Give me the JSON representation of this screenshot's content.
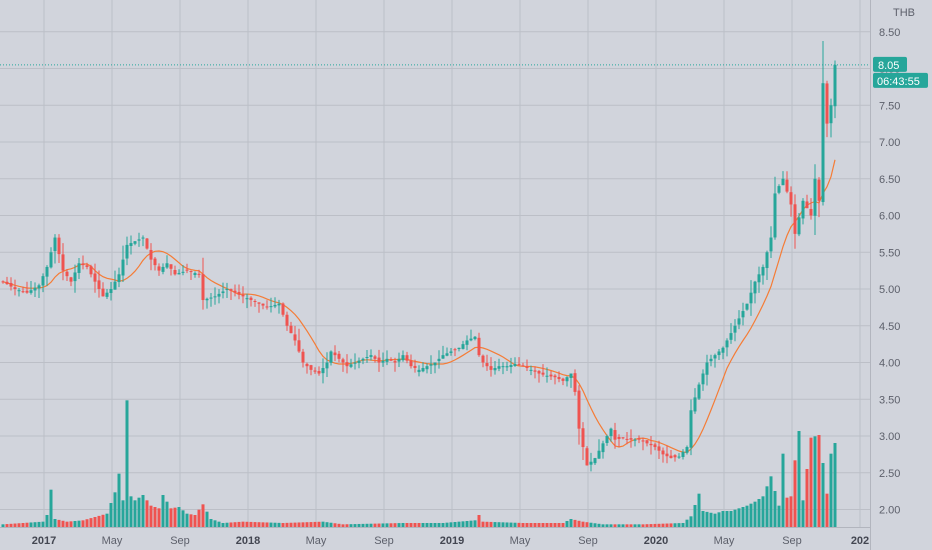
{
  "chart_data": {
    "type": "candlestick",
    "currency": "THB",
    "ylim": [
      1.75,
      8.75
    ],
    "y_ticks": [
      "8.50",
      "8.00",
      "7.50",
      "7.00",
      "6.50",
      "6.00",
      "5.50",
      "5.00",
      "4.50",
      "4.00",
      "3.50",
      "3.00",
      "2.50",
      "2.00"
    ],
    "x_ticks": [
      {
        "label": "2017",
        "week": 2,
        "year": true
      },
      {
        "label": "May",
        "week": 19,
        "year": false
      },
      {
        "label": "Sep",
        "week": 36,
        "year": false
      },
      {
        "label": "2018",
        "week": 53,
        "year": true
      },
      {
        "label": "May",
        "week": 70,
        "year": false
      },
      {
        "label": "Sep",
        "week": 87,
        "year": false
      },
      {
        "label": "2019",
        "week": 104,
        "year": true
      },
      {
        "label": "May",
        "week": 121,
        "year": false
      },
      {
        "label": "Sep",
        "week": 138,
        "year": false
      },
      {
        "label": "2020",
        "week": 155,
        "year": true
      },
      {
        "label": "May",
        "week": 172,
        "year": false
      },
      {
        "label": "Sep",
        "week": 189,
        "year": false
      },
      {
        "label": "202",
        "week": 206,
        "year": true
      }
    ],
    "last_price": "8.05",
    "last_value": 8.05,
    "countdown": "06:43:55",
    "colors": {
      "up": "#26a69a",
      "down": "#ef5350",
      "ma": "#f57c36",
      "grid": "#bcbfc7",
      "text": "#5d606b",
      "last": "#26a69a"
    },
    "close_anchors": [
      [
        0,
        5.1
      ],
      [
        3,
        5.0
      ],
      [
        6,
        4.95
      ],
      [
        9,
        5.05
      ],
      [
        11,
        5.3
      ],
      [
        13,
        5.7
      ],
      [
        15,
        5.25
      ],
      [
        17,
        5.1
      ],
      [
        19,
        5.35
      ],
      [
        21,
        5.3
      ],
      [
        23,
        5.1
      ],
      [
        25,
        4.9
      ],
      [
        27,
        5.0
      ],
      [
        29,
        5.2
      ],
      [
        31,
        5.6
      ],
      [
        33,
        5.65
      ],
      [
        35,
        5.7
      ],
      [
        37,
        5.4
      ],
      [
        39,
        5.25
      ],
      [
        41,
        5.35
      ],
      [
        43,
        5.2
      ],
      [
        46,
        5.25
      ],
      [
        49,
        5.2
      ],
      [
        50,
        4.85
      ],
      [
        53,
        4.9
      ],
      [
        56,
        5.0
      ],
      [
        58,
        4.95
      ],
      [
        60,
        4.9
      ],
      [
        62,
        4.85
      ],
      [
        64,
        4.8
      ],
      [
        66,
        4.75
      ],
      [
        69,
        4.8
      ],
      [
        71,
        4.5
      ],
      [
        73,
        4.3
      ],
      [
        75,
        4.0
      ],
      [
        77,
        3.9
      ],
      [
        79,
        3.85
      ],
      [
        81,
        4.0
      ],
      [
        82,
        4.15
      ],
      [
        84,
        4.05
      ],
      [
        86,
        3.95
      ],
      [
        88,
        4.0
      ],
      [
        90,
        4.05
      ],
      [
        92,
        4.1
      ],
      [
        94,
        4.0
      ],
      [
        96,
        4.05
      ],
      [
        98,
        4.0
      ],
      [
        100,
        4.1
      ],
      [
        102,
        3.95
      ],
      [
        104,
        3.9
      ],
      [
        106,
        3.95
      ],
      [
        108,
        4.0
      ],
      [
        110,
        4.1
      ],
      [
        112,
        4.15
      ],
      [
        114,
        4.2
      ],
      [
        116,
        4.3
      ],
      [
        118,
        4.35
      ],
      [
        119,
        4.1
      ],
      [
        120,
        4.0
      ],
      [
        122,
        3.9
      ],
      [
        124,
        3.95
      ],
      [
        126,
        3.95
      ],
      [
        128,
        3.98
      ],
      [
        130,
        3.95
      ],
      [
        132,
        3.9
      ],
      [
        134,
        3.85
      ],
      [
        136,
        3.82
      ],
      [
        138,
        3.8
      ],
      [
        140,
        3.75
      ],
      [
        142,
        3.85
      ],
      [
        143,
        3.6
      ],
      [
        144,
        3.1
      ],
      [
        145,
        2.85
      ],
      [
        146,
        2.6
      ],
      [
        148,
        2.7
      ],
      [
        150,
        2.9
      ],
      [
        152,
        3.1
      ],
      [
        153,
        2.95
      ],
      [
        155,
        2.97
      ],
      [
        157,
        2.95
      ],
      [
        159,
        2.95
      ],
      [
        161,
        2.9
      ],
      [
        163,
        2.85
      ],
      [
        165,
        2.75
      ],
      [
        167,
        2.7
      ],
      [
        169,
        2.72
      ],
      [
        171,
        2.85
      ],
      [
        172,
        3.35
      ],
      [
        174,
        3.7
      ],
      [
        176,
        4.0
      ],
      [
        178,
        4.1
      ],
      [
        180,
        4.2
      ],
      [
        182,
        4.4
      ],
      [
        184,
        4.6
      ],
      [
        186,
        4.8
      ],
      [
        188,
        5.1
      ],
      [
        190,
        5.3
      ],
      [
        192,
        5.7
      ],
      [
        193,
        6.3
      ],
      [
        195,
        6.5
      ],
      [
        197,
        6.15
      ],
      [
        198,
        5.75
      ],
      [
        200,
        6.2
      ],
      [
        202,
        6.0
      ],
      [
        203,
        6.5
      ],
      [
        204,
        6.2
      ],
      [
        205,
        7.8
      ],
      [
        206,
        7.25
      ],
      [
        207,
        7.5
      ],
      [
        208,
        8.05
      ]
    ],
    "volume_anchors": [
      [
        0,
        0.2
      ],
      [
        10,
        0.4
      ],
      [
        11,
        0.9
      ],
      [
        12,
        2.8
      ],
      [
        13,
        0.6
      ],
      [
        16,
        0.4
      ],
      [
        20,
        0.5
      ],
      [
        26,
        1.0
      ],
      [
        28,
        2.6
      ],
      [
        29,
        4.0
      ],
      [
        30,
        2.0
      ],
      [
        31,
        9.5
      ],
      [
        32,
        2.3
      ],
      [
        33,
        2.0
      ],
      [
        35,
        2.4
      ],
      [
        37,
        1.6
      ],
      [
        39,
        1.4
      ],
      [
        40,
        2.4
      ],
      [
        42,
        1.4
      ],
      [
        44,
        1.5
      ],
      [
        46,
        1.0
      ],
      [
        48,
        0.9
      ],
      [
        50,
        1.7
      ],
      [
        52,
        0.6
      ],
      [
        55,
        0.3
      ],
      [
        60,
        0.4
      ],
      [
        70,
        0.3
      ],
      [
        80,
        0.4
      ],
      [
        85,
        0.2
      ],
      [
        100,
        0.3
      ],
      [
        110,
        0.3
      ],
      [
        118,
        0.5
      ],
      [
        119,
        0.9
      ],
      [
        120,
        0.4
      ],
      [
        130,
        0.3
      ],
      [
        140,
        0.3
      ],
      [
        142,
        0.6
      ],
      [
        145,
        0.4
      ],
      [
        150,
        0.2
      ],
      [
        160,
        0.2
      ],
      [
        170,
        0.3
      ],
      [
        172,
        0.8
      ],
      [
        174,
        2.5
      ],
      [
        175,
        1.2
      ],
      [
        178,
        1.0
      ],
      [
        180,
        1.2
      ],
      [
        182,
        1.2
      ],
      [
        184,
        1.4
      ],
      [
        186,
        1.6
      ],
      [
        188,
        1.9
      ],
      [
        190,
        2.3
      ],
      [
        192,
        3.8
      ],
      [
        194,
        1.6
      ],
      [
        195,
        5.5
      ],
      [
        196,
        2.2
      ],
      [
        197,
        2.3
      ],
      [
        198,
        5.0
      ],
      [
        199,
        7.2
      ],
      [
        200,
        2.0
      ],
      [
        202,
        6.7
      ],
      [
        204,
        6.9
      ],
      [
        205,
        4.8
      ],
      [
        206,
        2.5
      ],
      [
        207,
        5.5
      ],
      [
        208,
        6.3
      ]
    ],
    "volume_max": 10.5,
    "ma_period": 10,
    "week_count": 209,
    "last_week": 208
  }
}
